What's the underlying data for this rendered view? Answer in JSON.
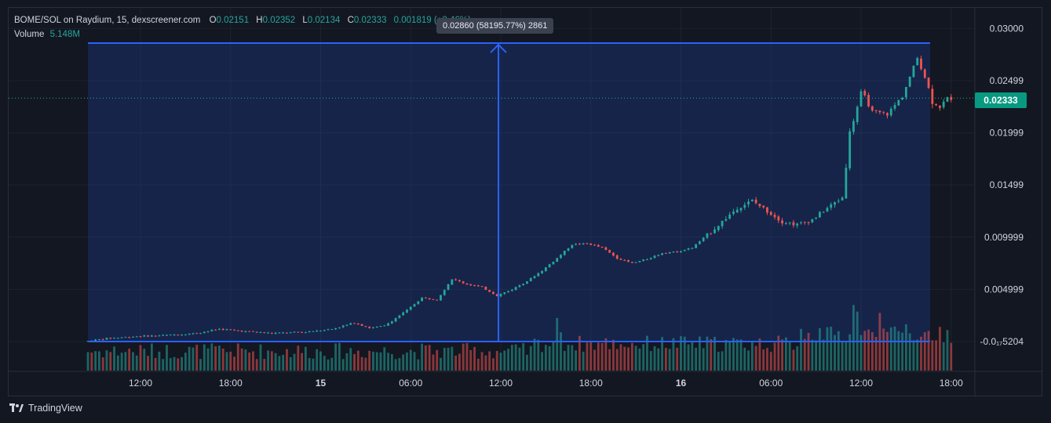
{
  "legend": {
    "symbol": "BOME/SOL on Raydium, 15, dexscreener.com",
    "o_label": "O",
    "o": "0.02151",
    "h_label": "H",
    "h": "0.02352",
    "l_label": "L",
    "l": "0.02134",
    "c_label": "C",
    "c": "0.02333",
    "change": "0.001819 (+8.46%)",
    "volume_label": "Volume",
    "volume_value": "5.148M"
  },
  "measure_tooltip": "0.02860 (58195.77%) 2861",
  "last_price": "0.02333",
  "brand": "TradingView",
  "colors": {
    "up": "#26a69a",
    "down": "#ef5350",
    "measure": "#2962ff",
    "bg": "#131722"
  },
  "chart_data": {
    "type": "candlestick",
    "y_ticks": [
      "0.03000",
      "0.02499",
      "0.01999",
      "0.01499",
      "0.009999",
      "0.004999",
      "-0.0₁₇5204"
    ],
    "y_tick_values": [
      0.03,
      0.025,
      0.02,
      0.015,
      0.01,
      0.005,
      0.0
    ],
    "x_ticks": [
      {
        "label": "12:00",
        "hours": 12
      },
      {
        "label": "18:00",
        "hours": 18
      },
      {
        "label": "15",
        "hours": 24,
        "bold": true
      },
      {
        "label": "06:00",
        "hours": 30
      },
      {
        "label": "12:00",
        "hours": 36
      },
      {
        "label": "18:00",
        "hours": 42
      },
      {
        "label": "16",
        "hours": 48,
        "bold": true
      },
      {
        "label": "06:00",
        "hours": 54
      },
      {
        "label": "12:00",
        "hours": 60
      },
      {
        "label": "18:00",
        "hours": 66
      }
    ],
    "ylim": [
      0.0,
      0.03
    ],
    "price_path": [
      [
        8.5,
        0.0
      ],
      [
        10,
        0.0003
      ],
      [
        12,
        0.0005
      ],
      [
        14,
        0.0006
      ],
      [
        16,
        0.0008
      ],
      [
        17.5,
        0.0012
      ],
      [
        19,
        0.001
      ],
      [
        21,
        0.0008
      ],
      [
        23,
        0.0009
      ],
      [
        25,
        0.0012
      ],
      [
        26.5,
        0.0018
      ],
      [
        27.5,
        0.0013
      ],
      [
        28.5,
        0.0015
      ],
      [
        30,
        0.003
      ],
      [
        31,
        0.0042
      ],
      [
        32,
        0.004
      ],
      [
        33,
        0.006
      ],
      [
        34,
        0.0055
      ],
      [
        35,
        0.0052
      ],
      [
        36,
        0.0044
      ],
      [
        37,
        0.005
      ],
      [
        38,
        0.0058
      ],
      [
        39,
        0.0068
      ],
      [
        40,
        0.008
      ],
      [
        41,
        0.0093
      ],
      [
        42,
        0.0094
      ],
      [
        43,
        0.009
      ],
      [
        44,
        0.008
      ],
      [
        45,
        0.0075
      ],
      [
        46,
        0.0079
      ],
      [
        47,
        0.0085
      ],
      [
        48,
        0.0086
      ],
      [
        49,
        0.009
      ],
      [
        50,
        0.0102
      ],
      [
        51,
        0.0115
      ],
      [
        52,
        0.0128
      ],
      [
        53,
        0.0135
      ],
      [
        54,
        0.0125
      ],
      [
        55,
        0.0115
      ],
      [
        56,
        0.0112
      ],
      [
        57,
        0.0117
      ],
      [
        58,
        0.0128
      ],
      [
        59,
        0.0138
      ],
      [
        59.5,
        0.02
      ],
      [
        60.3,
        0.024
      ],
      [
        61,
        0.022
      ],
      [
        62,
        0.0218
      ],
      [
        63,
        0.0235
      ],
      [
        64,
        0.0272
      ],
      [
        64.6,
        0.025
      ],
      [
        65,
        0.023
      ],
      [
        65.5,
        0.0225
      ],
      [
        66,
        0.0233
      ]
    ],
    "volume_peaks": [
      [
        59.6,
        0.85
      ],
      [
        61.3,
        0.68
      ],
      [
        57.3,
        0.5
      ],
      [
        39.8,
        0.62
      ],
      [
        56.0,
        0.45
      ],
      [
        63.0,
        0.5
      ],
      [
        65.3,
        0.45
      ]
    ],
    "measure": {
      "start_hours": 8.5,
      "end_hours": 64.6,
      "low": 0.0,
      "high": 0.0286
    }
  }
}
